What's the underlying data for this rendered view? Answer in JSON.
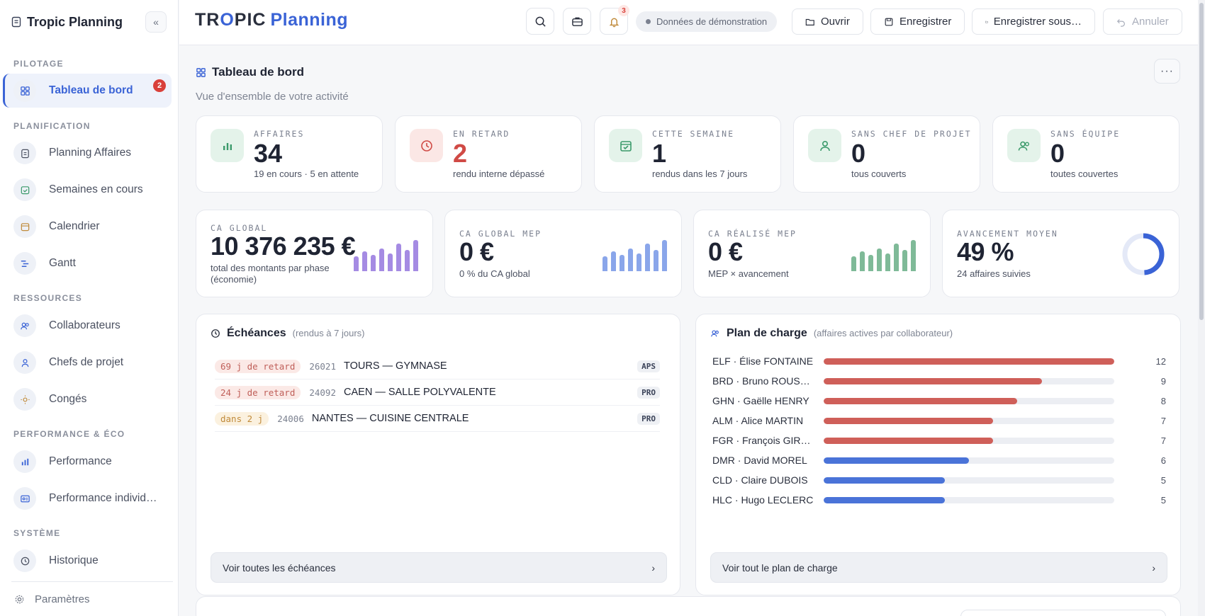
{
  "app": {
    "name": "Tropic Planning",
    "logo_part1": "TR",
    "logo_o": "O",
    "logo_part2": "PIC",
    "logo_part3": "Planning"
  },
  "sidebar": {
    "sections": {
      "pilotage": "PILOTAGE",
      "planification": "PLANIFICATION",
      "ressources": "RESSOURCES",
      "performance": "PERFORMANCE & ÉCO",
      "systeme": "SYSTÈME"
    },
    "items": {
      "dashboard": {
        "label": "Tableau de bord",
        "badge": "2"
      },
      "planning": {
        "label": "Planning Affaires"
      },
      "weeks": {
        "label": "Semaines en cours"
      },
      "calendar": {
        "label": "Calendrier"
      },
      "gantt": {
        "label": "Gantt"
      },
      "collaborators": {
        "label": "Collaborateurs"
      },
      "project_leads": {
        "label": "Chefs de projet"
      },
      "leave": {
        "label": "Congés"
      },
      "performance": {
        "label": "Performance"
      },
      "individual_performance": {
        "label": "Performance individuelle"
      },
      "history": {
        "label": "Historique"
      }
    },
    "settings": "Paramètres"
  },
  "topbar": {
    "notifications_count": "3",
    "demo_label": "Données de démonstration",
    "open": "Ouvrir",
    "save": "Enregistrer",
    "save_as": "Enregistrer sous…",
    "undo": "Annuler"
  },
  "page": {
    "title": "Tableau de bord",
    "subtitle": "Vue d'ensemble de votre activité"
  },
  "kpis": [
    {
      "label": "AFFAIRES",
      "value": "34",
      "sub": "19 en cours · 5 en attente",
      "color": "#3b9a6b",
      "bg": "#e4f3ea"
    },
    {
      "label": "EN RETARD",
      "value": "2",
      "sub": "rendu interne dépassé",
      "color": "#d04a45",
      "bg": "#fbe7e5"
    },
    {
      "label": "CETTE SEMAINE",
      "value": "1",
      "sub": "rendus dans les 7 jours",
      "color": "#3b9a6b",
      "bg": "#e4f3ea"
    },
    {
      "label": "SANS CHEF DE PROJET",
      "value": "0",
      "sub": "tous couverts",
      "color": "#3b9a6b",
      "bg": "#e4f3ea"
    },
    {
      "label": "SANS ÉQUIPE",
      "value": "0",
      "sub": "toutes couvertes",
      "color": "#3b9a6b",
      "bg": "#e4f3ea"
    }
  ],
  "ca_cards": [
    {
      "label": "CA GLOBAL",
      "value": "10 376 235 €",
      "sub": "total des montants par phase (économie)",
      "color": "#a58be3",
      "bars": [
        0.45,
        0.6,
        0.5,
        0.7,
        0.55,
        0.85,
        0.65,
        0.95
      ]
    },
    {
      "label": "CA GLOBAL MEP",
      "value": "0 €",
      "sub": "0 % du CA global",
      "color": "#8aa6ea",
      "bars": [
        0.45,
        0.6,
        0.5,
        0.7,
        0.55,
        0.85,
        0.65,
        0.95
      ]
    },
    {
      "label": "CA RÉALISÉ MEP",
      "value": "0 €",
      "sub": "MEP × avancement",
      "color": "#7fba98",
      "bars": [
        0.45,
        0.6,
        0.5,
        0.7,
        0.55,
        0.85,
        0.65,
        0.95
      ]
    },
    {
      "label": "AVANCEMENT MOYEN",
      "value": "49 %",
      "sub": "24 affaires suivies",
      "color": "#3a63d6",
      "progress": 0.49
    }
  ],
  "deadlines": {
    "title": "Échéances",
    "note": "(rendus à 7 jours)",
    "items": [
      {
        "tag": "69 j de retard",
        "code": "26021",
        "name": "TOURS — GYMNASE",
        "phase": "APS",
        "tag_color": "#c0605a",
        "tag_bg": "#fbe9e6"
      },
      {
        "tag": "24 j de retard",
        "code": "24092",
        "name": "CAEN — SALLE POLYVALENTE",
        "phase": "PRO",
        "tag_color": "#c0605a",
        "tag_bg": "#fbe9e6"
      },
      {
        "tag": "dans 2 j",
        "code": "24006",
        "name": "NANTES — CUISINE CENTRALE",
        "phase": "PRO",
        "tag_color": "#c08a3a",
        "tag_bg": "#fbf1df"
      }
    ],
    "footer": "Voir toutes les échéances"
  },
  "workload": {
    "title": "Plan de charge",
    "note": "(affaires actives par collaborateur)",
    "max": 12,
    "rows": [
      {
        "name": "ELF · Élise FONTAINE",
        "value": 12,
        "color": "#cf5f59"
      },
      {
        "name": "BRD · Bruno ROUSSEL",
        "value": 9,
        "color": "#cf5f59"
      },
      {
        "name": "GHN · Gaëlle HENRY",
        "value": 8,
        "color": "#cf5f59"
      },
      {
        "name": "ALM · Alice MARTIN",
        "value": 7,
        "color": "#cf5f59"
      },
      {
        "name": "FGR · François GIRARD",
        "value": 7,
        "color": "#cf5f59"
      },
      {
        "name": "DMR · David MOREL",
        "value": 6,
        "color": "#4a73d8"
      },
      {
        "name": "CLD · Claire DUBOIS",
        "value": 5,
        "color": "#4a73d8"
      },
      {
        "name": "HLC · Hugo LECLERC",
        "value": 5,
        "color": "#4a73d8"
      }
    ],
    "footer": "Voir tout le plan de charge"
  }
}
